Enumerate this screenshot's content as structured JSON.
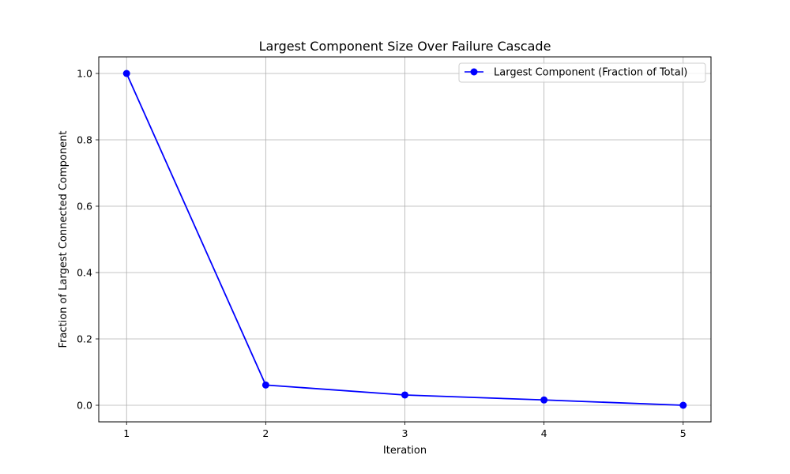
{
  "chart_data": {
    "type": "line",
    "title": "Largest Component Size Over Failure Cascade",
    "xlabel": "Iteration",
    "ylabel": "Fraction of Largest Connected Component",
    "x": [
      1,
      2,
      3,
      4,
      5
    ],
    "xticks": [
      "1",
      "2",
      "3",
      "4",
      "5"
    ],
    "yticks": [
      "0.0",
      "0.2",
      "0.4",
      "0.6",
      "0.8",
      "1.0"
    ],
    "xlim": [
      0.8,
      5.2
    ],
    "ylim": [
      -0.05,
      1.05
    ],
    "grid": true,
    "legend_position": "top-right",
    "series": [
      {
        "name": "Largest Component (Fraction of Total)",
        "values": [
          1.0,
          0.061,
          0.031,
          0.016,
          0.0
        ],
        "color": "#0000ff",
        "marker": "circle"
      }
    ]
  }
}
